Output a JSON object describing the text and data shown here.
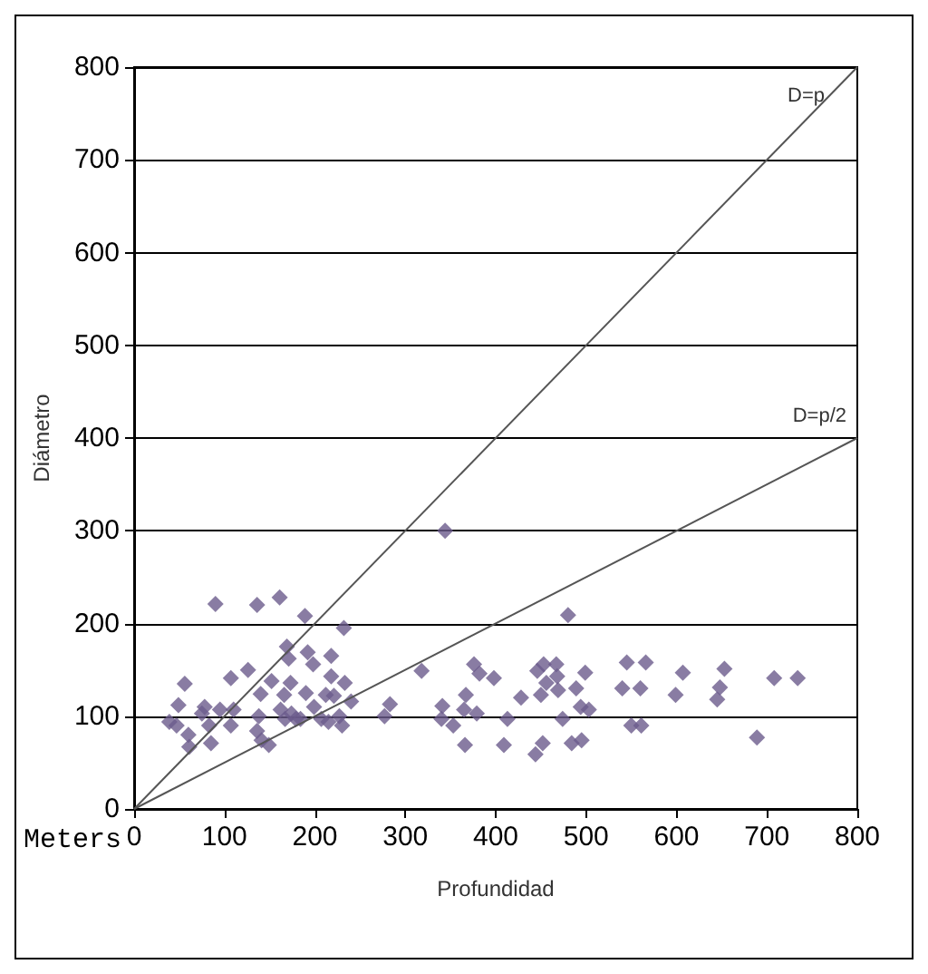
{
  "chart_data": {
    "type": "scatter",
    "xlabel": "Profundidad",
    "ylabel": "Diámetro",
    "annotations": [
      "Meters"
    ],
    "grid": "y",
    "legend": false,
    "xlim": [
      0,
      800
    ],
    "xticks": [
      0,
      100,
      200,
      300,
      400,
      500,
      600,
      700,
      800
    ],
    "ylim": [
      0,
      800
    ],
    "yticks": [
      0,
      100,
      200,
      300,
      400,
      500,
      600,
      700,
      800
    ],
    "series": [
      {
        "marker": "diamond",
        "color": "#6b5b8c",
        "x": [
          90,
          136,
          161,
          189,
          232,
          56,
          49,
          39,
          47,
          61,
          60,
          75,
          78,
          83,
          85,
          95,
          107,
          107,
          110,
          126,
          140,
          138,
          136,
          141,
          149,
          152,
          169,
          171,
          173,
          166,
          162,
          174,
          167,
          179,
          184,
          190,
          192,
          198,
          199,
          207,
          212,
          215,
          218,
          218,
          221,
          227,
          230,
          233,
          240,
          277,
          283,
          318,
          341,
          340,
          353,
          344,
          367,
          366,
          365,
          376,
          382,
          379,
          398,
          409,
          413,
          428,
          444,
          452,
          446,
          453,
          450,
          456,
          467,
          468,
          469,
          474,
          480,
          484,
          489,
          495,
          494,
          499,
          503,
          540,
          545,
          550,
          560,
          566,
          561,
          599,
          607,
          645,
          648,
          653,
          689,
          708,
          734
        ],
        "values": [
          221,
          220,
          228,
          208,
          195,
          135,
          112,
          94,
          90,
          67,
          80,
          103,
          110,
          90,
          71,
          107,
          141,
          90,
          107,
          150,
          124,
          100,
          84,
          74,
          69,
          138,
          175,
          162,
          136,
          123,
          107,
          103,
          97,
          97,
          97,
          125,
          169,
          156,
          110,
          97,
          123,
          94,
          165,
          143,
          122,
          100,
          90,
          136,
          116,
          100,
          113,
          149,
          111,
          97,
          90,
          300,
          123,
          69,
          107,
          156,
          146,
          103,
          141,
          69,
          97,
          120,
          59,
          71,
          149,
          156,
          123,
          136,
          156,
          143,
          128,
          97,
          209,
          71,
          130,
          74,
          110,
          147,
          107,
          130,
          158,
          90,
          130,
          158,
          90,
          123,
          147,
          118,
          131,
          151,
          77,
          141,
          141
        ]
      },
      {
        "type": "line",
        "marker": "none",
        "name": "D=p",
        "color": "#555555",
        "x": [
          0,
          800
        ],
        "values": [
          0,
          800
        ]
      },
      {
        "type": "line",
        "marker": "none",
        "name": "D=p/2",
        "color": "#555555",
        "x": [
          0,
          800
        ],
        "values": [
          0,
          400
        ]
      }
    ]
  }
}
